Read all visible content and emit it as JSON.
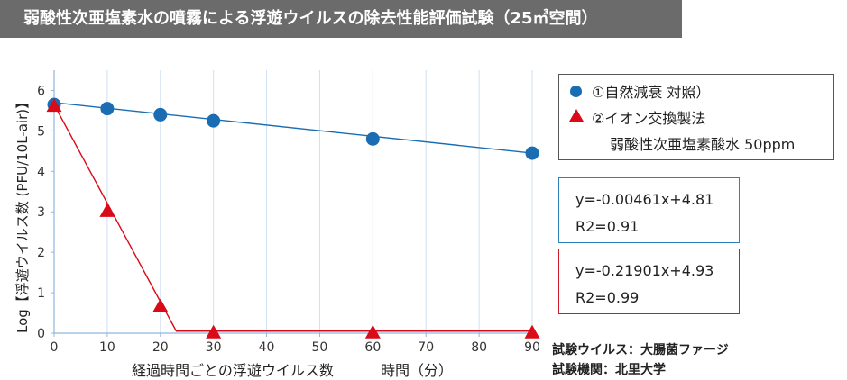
{
  "title": "弱酸性次亜塩素水の噴霧による浮遊ウイルスの除去性能評価試験（25㎥空間）",
  "legend": {
    "series1_label": "①自然減衰 対照）",
    "series2_label": "②イオン交換製法",
    "series2_sub": "弱酸性次亜塩素酸水 50ppm"
  },
  "equations": {
    "series1_eq": "y=-0.00461x+4.81",
    "series1_r2": "R2=0.91",
    "series2_eq": "y=-0.21901x+4.93",
    "series2_r2": "R2=0.99"
  },
  "notes": {
    "virus": "試験ウイルス：大腸菌ファージ",
    "institution": "試験機関：北里大学"
  },
  "axes": {
    "xlabel": "経過時間ごとの浮遊ウイルス数",
    "xunit": "時間（分）",
    "ylabel": "Log【浮遊ウイルス数 (PFU/10L-air)】"
  },
  "chart_data": {
    "type": "line",
    "title": "弱酸性次亜塩素水の噴霧による浮遊ウイルスの除去性能評価試験（25㎥空間）",
    "xlabel": "経過時間ごとの浮遊ウイルス数　時間（分）",
    "ylabel": "Log【浮遊ウイルス数 (PFU/10L-air)】",
    "xlim": [
      0,
      90
    ],
    "ylim": [
      0,
      6.5
    ],
    "xticks": [
      0,
      10,
      20,
      30,
      40,
      50,
      60,
      70,
      80,
      90
    ],
    "yticks": [
      0,
      1,
      2,
      3,
      4,
      5,
      6
    ],
    "grid": "vertical",
    "series": [
      {
        "name": "①自然減衰 対照）",
        "marker": "circle",
        "color": "#1a6db3",
        "x": [
          0,
          10,
          20,
          30,
          60,
          90
        ],
        "y": [
          5.65,
          5.55,
          5.4,
          5.25,
          4.8,
          4.45
        ],
        "fit_line": [
          [
            0,
            5.7
          ],
          [
            90,
            4.45
          ]
        ]
      },
      {
        "name": "②イオン交換製法 弱酸性次亜塩素酸水 50ppm",
        "marker": "triangle",
        "color": "#d90b18",
        "x": [
          0,
          10,
          20,
          30,
          60,
          90
        ],
        "y": [
          5.6,
          3.0,
          0.65,
          0.0,
          0.0,
          0.0
        ],
        "fit_line": [
          [
            0,
            5.65
          ],
          [
            23,
            0.05
          ],
          [
            90,
            0.05
          ]
        ]
      }
    ]
  }
}
